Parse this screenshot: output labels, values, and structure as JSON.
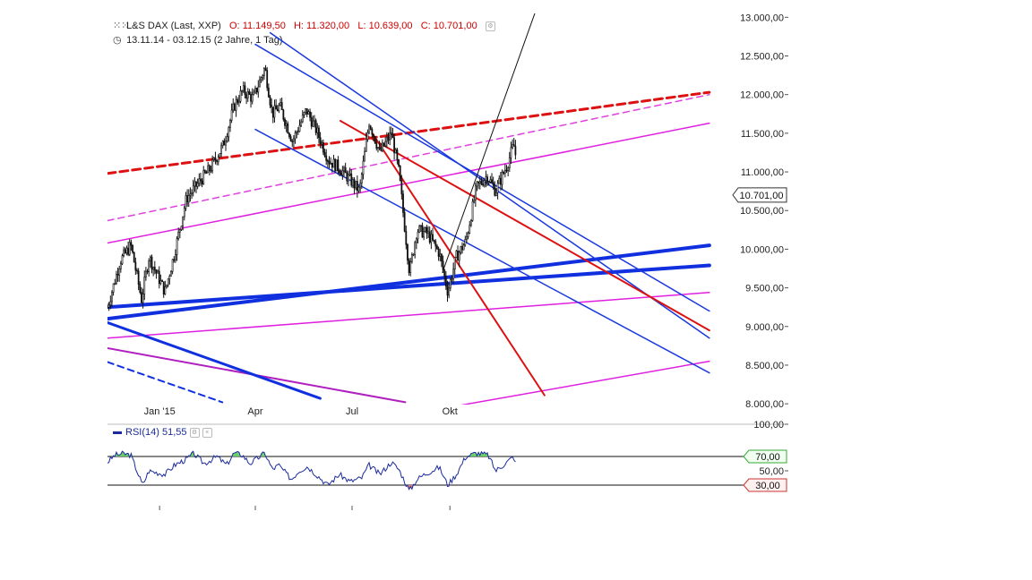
{
  "header": {
    "title": "L&S DAX (Last, XXP)",
    "open_label": "O:",
    "open_value": "11.149,50",
    "high_label": "H:",
    "high_value": "11.320,00",
    "low_label": "L:",
    "low_value": "10.639,00",
    "close_label": "C:",
    "close_value": "10.701,00",
    "range": "13.11.14 - 03.12.15 (2 Jahre, 1 Tag)"
  },
  "chart_data": [
    {
      "type": "candlestick",
      "title": "L&S DAX (Last, XXP)",
      "x_tick_labels": [
        "Jan '15",
        "Apr",
        "Jul",
        "Okt"
      ],
      "y_tick_labels": [
        "13.000,00",
        "12.500,00",
        "12.000,00",
        "11.500,00",
        "11.000,00",
        "10.500,00",
        "10.000,00",
        "9.500,00",
        "9.000,00",
        "8.500,00",
        "8.000,00"
      ],
      "y_ticks": [
        13000,
        12500,
        12000,
        11500,
        11000,
        10500,
        10000,
        9500,
        9000,
        8500,
        8000
      ],
      "ylim": [
        7990,
        13050
      ],
      "last_price": 10701,
      "last_price_label": "10.701,00",
      "close_series": [
        {
          "date": "2014-11-13",
          "value": 9250
        },
        {
          "date": "2014-11-25",
          "value": 9850
        },
        {
          "date": "2014-12-05",
          "value": 10050
        },
        {
          "date": "2014-12-15",
          "value": 9350
        },
        {
          "date": "2014-12-22",
          "value": 9900
        },
        {
          "date": "2015-01-06",
          "value": 9450
        },
        {
          "date": "2015-01-15",
          "value": 9950
        },
        {
          "date": "2015-01-26",
          "value": 10650
        },
        {
          "date": "2015-02-06",
          "value": 10850
        },
        {
          "date": "2015-02-18",
          "value": 11050
        },
        {
          "date": "2015-03-02",
          "value": 11350
        },
        {
          "date": "2015-03-12",
          "value": 11850
        },
        {
          "date": "2015-03-20",
          "value": 12050
        },
        {
          "date": "2015-03-30",
          "value": 11950
        },
        {
          "date": "2015-04-10",
          "value": 12350
        },
        {
          "date": "2015-04-17",
          "value": 11750
        },
        {
          "date": "2015-04-24",
          "value": 11850
        },
        {
          "date": "2015-05-06",
          "value": 11400
        },
        {
          "date": "2015-05-19",
          "value": 11800
        },
        {
          "date": "2015-05-28",
          "value": 11550
        },
        {
          "date": "2015-06-09",
          "value": 11150
        },
        {
          "date": "2015-06-19",
          "value": 11050
        },
        {
          "date": "2015-06-29",
          "value": 10900
        },
        {
          "date": "2015-07-08",
          "value": 10750
        },
        {
          "date": "2015-07-17",
          "value": 11650
        },
        {
          "date": "2015-07-27",
          "value": 11250
        },
        {
          "date": "2015-08-07",
          "value": 11500
        },
        {
          "date": "2015-08-14",
          "value": 11000
        },
        {
          "date": "2015-08-24",
          "value": 9700
        },
        {
          "date": "2015-08-31",
          "value": 10250
        },
        {
          "date": "2015-09-10",
          "value": 10200
        },
        {
          "date": "2015-09-21",
          "value": 9950
        },
        {
          "date": "2015-09-29",
          "value": 9450
        },
        {
          "date": "2015-10-07",
          "value": 9900
        },
        {
          "date": "2015-10-16",
          "value": 10100
        },
        {
          "date": "2015-10-26",
          "value": 10800
        },
        {
          "date": "2015-11-05",
          "value": 10950
        },
        {
          "date": "2015-11-13",
          "value": 10750
        },
        {
          "date": "2015-11-24",
          "value": 11100
        },
        {
          "date": "2015-11-30",
          "value": 11350
        },
        {
          "date": "2015-12-02",
          "value": 11200
        },
        {
          "date": "2015-12-03",
          "value": 10701
        }
      ],
      "drawings": [
        {
          "name": "red dashed trend",
          "color": "#dd1111",
          "style": "dashed",
          "width": 3,
          "from": {
            "date": "2014-11-13",
            "value": 10980
          },
          "to": {
            "date": "2016-06-01",
            "value": 12030
          }
        },
        {
          "name": "magenta dashed trend",
          "color": "#e040e0",
          "style": "dashed",
          "width": 1.5,
          "from": {
            "date": "2014-11-13",
            "value": 10370
          },
          "to": {
            "date": "2016-06-01",
            "value": 12000
          }
        },
        {
          "name": "magenta trend upper",
          "color": "#e020e0",
          "style": "solid",
          "width": 1.5,
          "from": {
            "date": "2014-11-13",
            "value": 10080
          },
          "to": {
            "date": "2016-06-01",
            "value": 11630
          }
        },
        {
          "name": "magenta trend lower",
          "color": "#e020e0",
          "style": "solid",
          "width": 1.5,
          "from": {
            "date": "2014-11-13",
            "value": 8850
          },
          "to": {
            "date": "2016-06-01",
            "value": 9440
          }
        },
        {
          "name": "magenta bottom",
          "color": "#e020e0",
          "style": "solid",
          "width": 1.5,
          "from": {
            "date": "2015-09-20",
            "value": 7930
          },
          "to": {
            "date": "2016-06-01",
            "value": 8550
          }
        },
        {
          "name": "purple line",
          "color": "#b020c0",
          "style": "solid",
          "width": 2,
          "from": {
            "date": "2014-11-13",
            "value": 8720
          },
          "to": {
            "date": "2015-08-20",
            "value": 8020
          }
        },
        {
          "name": "blue thick lower",
          "color": "#1030e0",
          "style": "solid",
          "width": 4,
          "from": {
            "date": "2014-11-13",
            "value": 9100
          },
          "to": {
            "date": "2016-06-01",
            "value": 10050
          }
        },
        {
          "name": "blue thick upper",
          "color": "#1030e0",
          "style": "solid",
          "width": 4,
          "from": {
            "date": "2014-11-13",
            "value": 9250
          },
          "to": {
            "date": "2016-06-01",
            "value": 9790
          }
        },
        {
          "name": "blue channel top",
          "color": "#1a3ae0",
          "style": "solid",
          "width": 1.5,
          "from": {
            "date": "2015-04-01",
            "value": 12650
          },
          "to": {
            "date": "2016-06-01",
            "value": 9200
          }
        },
        {
          "name": "blue channel middle",
          "color": "#1a3ae0",
          "style": "solid",
          "width": 1.5,
          "from": {
            "date": "2015-04-15",
            "value": 12800
          },
          "to": {
            "date": "2016-06-01",
            "value": 8850
          }
        },
        {
          "name": "blue channel bottom",
          "color": "#1a3ae0",
          "style": "solid",
          "width": 1.5,
          "from": {
            "date": "2015-04-01",
            "value": 11550
          },
          "to": {
            "date": "2016-06-01",
            "value": 8400
          }
        },
        {
          "name": "blue thick descending",
          "color": "#1030e0",
          "style": "solid",
          "width": 3,
          "from": {
            "date": "2014-11-13",
            "value": 9050
          },
          "to": {
            "date": "2015-06-01",
            "value": 8070
          }
        },
        {
          "name": "blue dashed descending",
          "color": "#1030e0",
          "style": "dashed",
          "width": 2,
          "from": {
            "date": "2014-11-13",
            "value": 8540
          },
          "to": {
            "date": "2015-03-01",
            "value": 8020
          }
        },
        {
          "name": "red descending",
          "color": "#dd1111",
          "style": "solid",
          "width": 2,
          "from": {
            "date": "2015-06-20",
            "value": 11660
          },
          "to": {
            "date": "2016-06-01",
            "value": 8950
          }
        },
        {
          "name": "red steep",
          "color": "#dd1111",
          "style": "solid",
          "width": 2,
          "from": {
            "date": "2015-07-20",
            "value": 11500
          },
          "to": {
            "date": "2015-12-29",
            "value": 8110
          }
        },
        {
          "name": "black steep uptrend",
          "color": "#111111",
          "style": "solid",
          "width": 1,
          "from": {
            "date": "2015-09-24",
            "value": 9700
          },
          "to": {
            "date": "2015-12-25",
            "value": 13250
          }
        }
      ]
    },
    {
      "type": "line",
      "title": "RSI(14)",
      "legend_label": "RSI(14)",
      "value_label": "51,55",
      "y_tick_labels": [
        "100,00",
        "70,00",
        "50,00",
        "30,00"
      ],
      "y_ticks": [
        100,
        70,
        50,
        30
      ],
      "reference_lines": [
        70,
        30
      ],
      "ylim": [
        0,
        100
      ],
      "overbought_fill": "#66cc66",
      "oversold_fill": "#dd7777",
      "series": [
        {
          "date": "2014-11-13",
          "value": 62
        },
        {
          "date": "2014-11-20",
          "value": 72
        },
        {
          "date": "2014-11-28",
          "value": 74
        },
        {
          "date": "2014-12-05",
          "value": 72
        },
        {
          "date": "2014-12-12",
          "value": 45
        },
        {
          "date": "2014-12-16",
          "value": 30
        },
        {
          "date": "2014-12-22",
          "value": 50
        },
        {
          "date": "2015-01-06",
          "value": 45
        },
        {
          "date": "2015-01-15",
          "value": 58
        },
        {
          "date": "2015-01-26",
          "value": 66
        },
        {
          "date": "2015-02-02",
          "value": 74
        },
        {
          "date": "2015-02-12",
          "value": 60
        },
        {
          "date": "2015-02-24",
          "value": 70
        },
        {
          "date": "2015-03-05",
          "value": 58
        },
        {
          "date": "2015-03-12",
          "value": 75
        },
        {
          "date": "2015-03-20",
          "value": 72
        },
        {
          "date": "2015-03-27",
          "value": 60
        },
        {
          "date": "2015-04-10",
          "value": 75
        },
        {
          "date": "2015-04-17",
          "value": 52
        },
        {
          "date": "2015-04-23",
          "value": 58
        },
        {
          "date": "2015-05-05",
          "value": 38
        },
        {
          "date": "2015-05-12",
          "value": 50
        },
        {
          "date": "2015-05-20",
          "value": 56
        },
        {
          "date": "2015-06-01",
          "value": 40
        },
        {
          "date": "2015-06-08",
          "value": 30
        },
        {
          "date": "2015-06-19",
          "value": 45
        },
        {
          "date": "2015-06-29",
          "value": 35
        },
        {
          "date": "2015-07-10",
          "value": 40
        },
        {
          "date": "2015-07-17",
          "value": 58
        },
        {
          "date": "2015-07-27",
          "value": 45
        },
        {
          "date": "2015-08-07",
          "value": 62
        },
        {
          "date": "2015-08-14",
          "value": 52
        },
        {
          "date": "2015-08-24",
          "value": 22
        },
        {
          "date": "2015-08-31",
          "value": 38
        },
        {
          "date": "2015-09-07",
          "value": 45
        },
        {
          "date": "2015-09-21",
          "value": 55
        },
        {
          "date": "2015-09-29",
          "value": 30
        },
        {
          "date": "2015-10-07",
          "value": 45
        },
        {
          "date": "2015-10-16",
          "value": 70
        },
        {
          "date": "2015-10-26",
          "value": 75
        },
        {
          "date": "2015-11-06",
          "value": 72
        },
        {
          "date": "2015-11-13",
          "value": 50
        },
        {
          "date": "2015-11-20",
          "value": 58
        },
        {
          "date": "2015-11-30",
          "value": 70
        },
        {
          "date": "2015-12-03",
          "value": 52
        }
      ]
    }
  ]
}
